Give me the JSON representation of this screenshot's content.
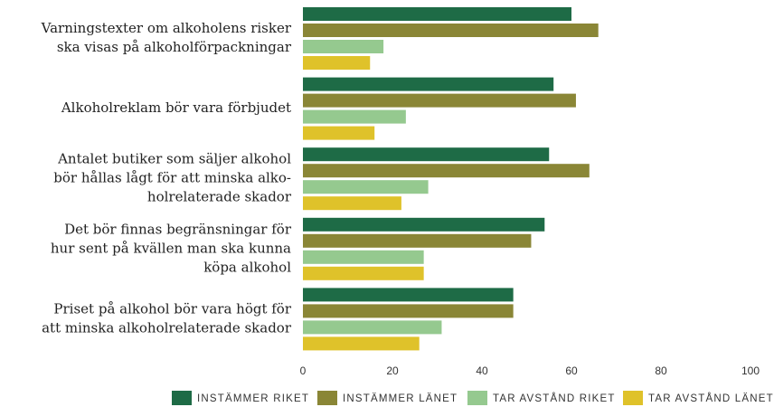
{
  "chart_data": {
    "type": "hbar",
    "categories": [
      "Varningstexter om alkoholens risker\nska visas på alkoholförpackningar",
      "Alkoholreklam bör vara förbjudet",
      "Antalet butiker som säljer alkohol\nbör hållas lågt för att minska alko-\nholrelaterade skador",
      "Det bör finnas begränsningar för\nhur sent på kvällen man ska kunna\nköpa alkohol",
      "Priset på alkohol bör vara högt för\natt minska alkoholrelaterade skador"
    ],
    "series": [
      {
        "name": "INSTÄMMER RIKET",
        "color": "#1e6b46",
        "values": [
          60,
          56,
          55,
          54,
          47
        ]
      },
      {
        "name": "INSTÄMMER LÄNET",
        "color": "#8a8636",
        "values": [
          66,
          61,
          64,
          51,
          47
        ]
      },
      {
        "name": "TAR AVSTÅND RIKET",
        "color": "#95c98f",
        "values": [
          18,
          23,
          28,
          27,
          31
        ]
      },
      {
        "name": "TAR AVSTÅND LÄNET",
        "color": "#dfc22a",
        "values": [
          15,
          16,
          22,
          27,
          26
        ]
      }
    ],
    "xlim": [
      0,
      100
    ],
    "xticks": [
      0,
      20,
      40,
      60,
      80,
      100
    ],
    "legend": "bottom"
  }
}
